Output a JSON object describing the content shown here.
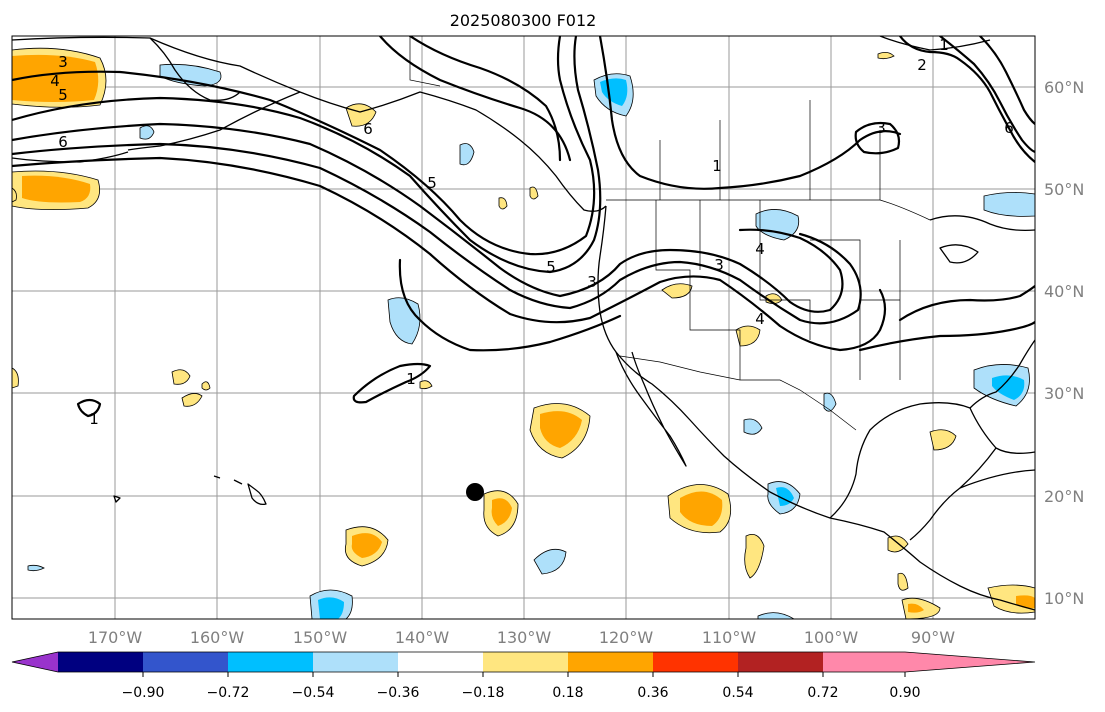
{
  "title": "2025080300 F012",
  "lon_labels": [
    "170°W",
    "160°W",
    "150°W",
    "140°W",
    "130°W",
    "120°W",
    "110°W",
    "100°W",
    "90°W"
  ],
  "lat_labels": [
    "60°N",
    "50°N",
    "40°N",
    "30°N",
    "20°N",
    "10°N"
  ],
  "colorbar": {
    "ticks": [
      "−0.90",
      "−0.72",
      "−0.54",
      "−0.36",
      "−0.18",
      "0.18",
      "0.36",
      "0.54",
      "0.72",
      "0.90"
    ],
    "colors": [
      "#9933cc",
      "#000080",
      "#3355cc",
      "#00bfff",
      "#aee0fa",
      "#ffffff",
      "#ffe680",
      "#ffa500",
      "#ff3300",
      "#b22222",
      "#ff88aa"
    ]
  },
  "contour_labels": [
    "3",
    "4",
    "5",
    "6",
    "5",
    "1",
    "3",
    "4",
    "5",
    "3",
    "4",
    "1",
    "1",
    "1",
    "3",
    "2",
    "6",
    "6"
  ],
  "colors": {
    "pos_light": "#ffe680",
    "pos_mid": "#ffa500",
    "neg_light": "#aee0fa",
    "neg_mid": "#00bfff",
    "grid": "#9a9a9a",
    "axis_label": "#808080"
  },
  "marker": "storm-position-dot"
}
